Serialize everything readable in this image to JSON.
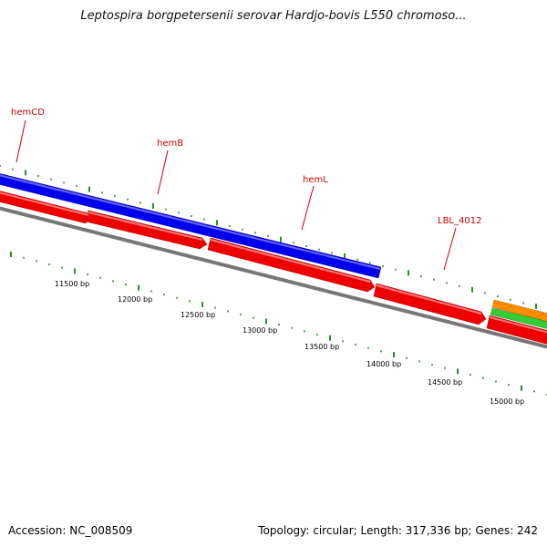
{
  "title": "Leptospira borgpetersenii serovar Hardjo-bovis L550 chromoso...",
  "footer": {
    "accession": "Accession: NC_008509",
    "summary": "Topology: circular; Length: 317,336 bp; Genes: 242"
  },
  "colors": {
    "forward_gene": "#0000ee",
    "reverse_gene": "#ee0000",
    "backbone": "#777777",
    "tick": "#2e8b2e",
    "label": "#cc0000",
    "orange_gene": "#ff8c00",
    "green_gene": "#33cc33"
  },
  "gene_labels": [
    {
      "id": "hemCD",
      "text": "hemCD"
    },
    {
      "id": "hemB",
      "text": "hemB"
    },
    {
      "id": "hemL",
      "text": "hemL"
    },
    {
      "id": "LBL_4012",
      "text": "LBL_4012"
    }
  ],
  "scale_labels": [
    {
      "id": "t11500",
      "text": "11500 bp"
    },
    {
      "id": "t12000",
      "text": "12000 bp"
    },
    {
      "id": "t12500",
      "text": "12500 bp"
    },
    {
      "id": "t13000",
      "text": "13000 bp"
    },
    {
      "id": "t13500",
      "text": "13500 bp"
    },
    {
      "id": "t14000",
      "text": "14000 bp"
    },
    {
      "id": "t14500",
      "text": "14500 bp"
    },
    {
      "id": "t15000",
      "text": "15000 bp"
    }
  ]
}
